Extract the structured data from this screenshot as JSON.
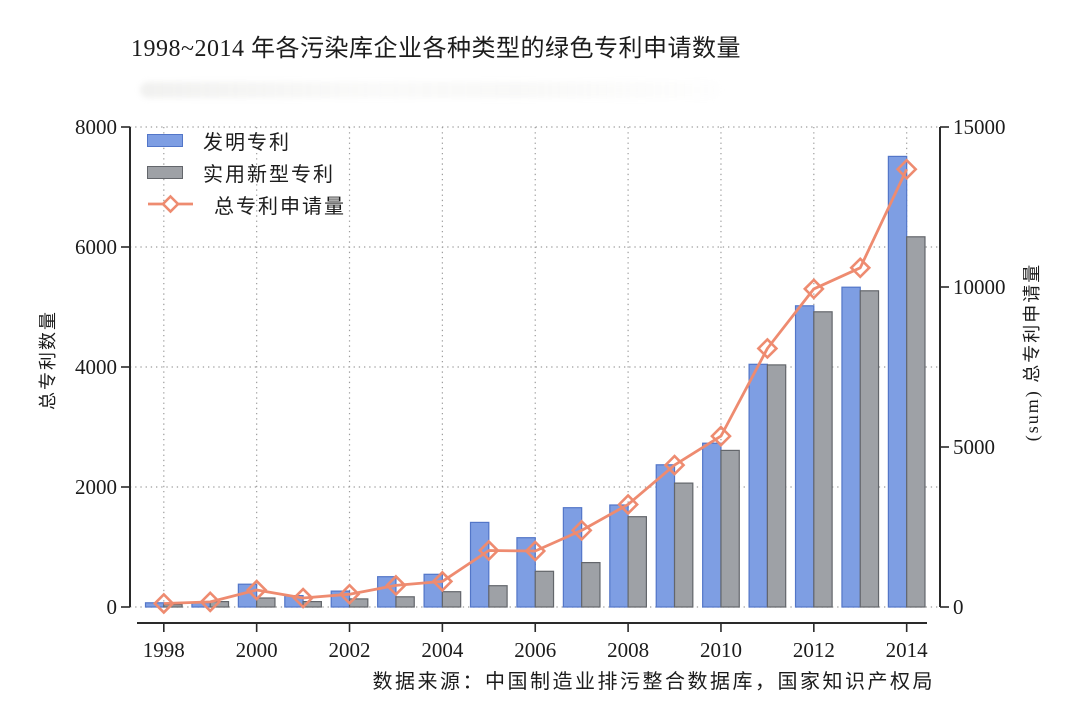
{
  "title": "1998~2014 年各污染库企业各种类型的绿色专利申请数量",
  "source": "数据来源：中国制造业排污整合数据库，国家知识产权局",
  "chart_data": {
    "type": "bar",
    "title": "1998~2014 年各污染库企业各种类型的绿色专利申请数量",
    "categories": [
      1998,
      1999,
      2000,
      2001,
      2002,
      2003,
      2004,
      2005,
      2006,
      2007,
      2008,
      2009,
      2010,
      2011,
      2012,
      2013,
      2014
    ],
    "series": [
      {
        "name": "发明专利",
        "type": "bar",
        "axis": "left",
        "fill": "#7E9EE3",
        "stroke": "#5376C8",
        "values": [
          70,
          70,
          380,
          190,
          265,
          505,
          545,
          1410,
          1155,
          1655,
          1700,
          2370,
          2730,
          4045,
          5020,
          5330,
          7510
        ]
      },
      {
        "name": "实用新型专利",
        "type": "bar",
        "axis": "left",
        "fill": "#9EA1A6",
        "stroke": "#63666B",
        "values": [
          40,
          90,
          150,
          90,
          135,
          170,
          255,
          355,
          595,
          740,
          1505,
          2065,
          2610,
          4035,
          4920,
          5270,
          6170
        ]
      },
      {
        "name": "总专利申请量",
        "type": "line",
        "axis": "right",
        "color": "#EE8B70",
        "marker": "open-diamond",
        "values": [
          110,
          160,
          530,
          280,
          400,
          675,
          800,
          1765,
          1750,
          2395,
          3205,
          4435,
          5340,
          8080,
          9940,
          10600,
          13680
        ]
      }
    ],
    "left_axis": {
      "label": "总专利数量",
      "range": [
        0,
        8000
      ],
      "ticks": [
        0,
        2000,
        4000,
        6000,
        8000
      ]
    },
    "right_axis": {
      "label": "(sum) 总专利申请量",
      "range": [
        0,
        15000
      ],
      "ticks": [
        0,
        5000,
        10000,
        15000
      ]
    },
    "x_axis": {
      "range": [
        1998,
        2014
      ],
      "tick_years": [
        1998,
        2000,
        2002,
        2004,
        2006,
        2008,
        2010,
        2012,
        2014
      ]
    },
    "grid": "dotted",
    "legend_position": "top-left-inside",
    "source": "数据来源：中国制造业排污整合数据库，国家知识产权局",
    "colors": {
      "grid": "#9c9c9c",
      "axis": "#2a2a2a",
      "text": "#1c1c1c"
    }
  }
}
